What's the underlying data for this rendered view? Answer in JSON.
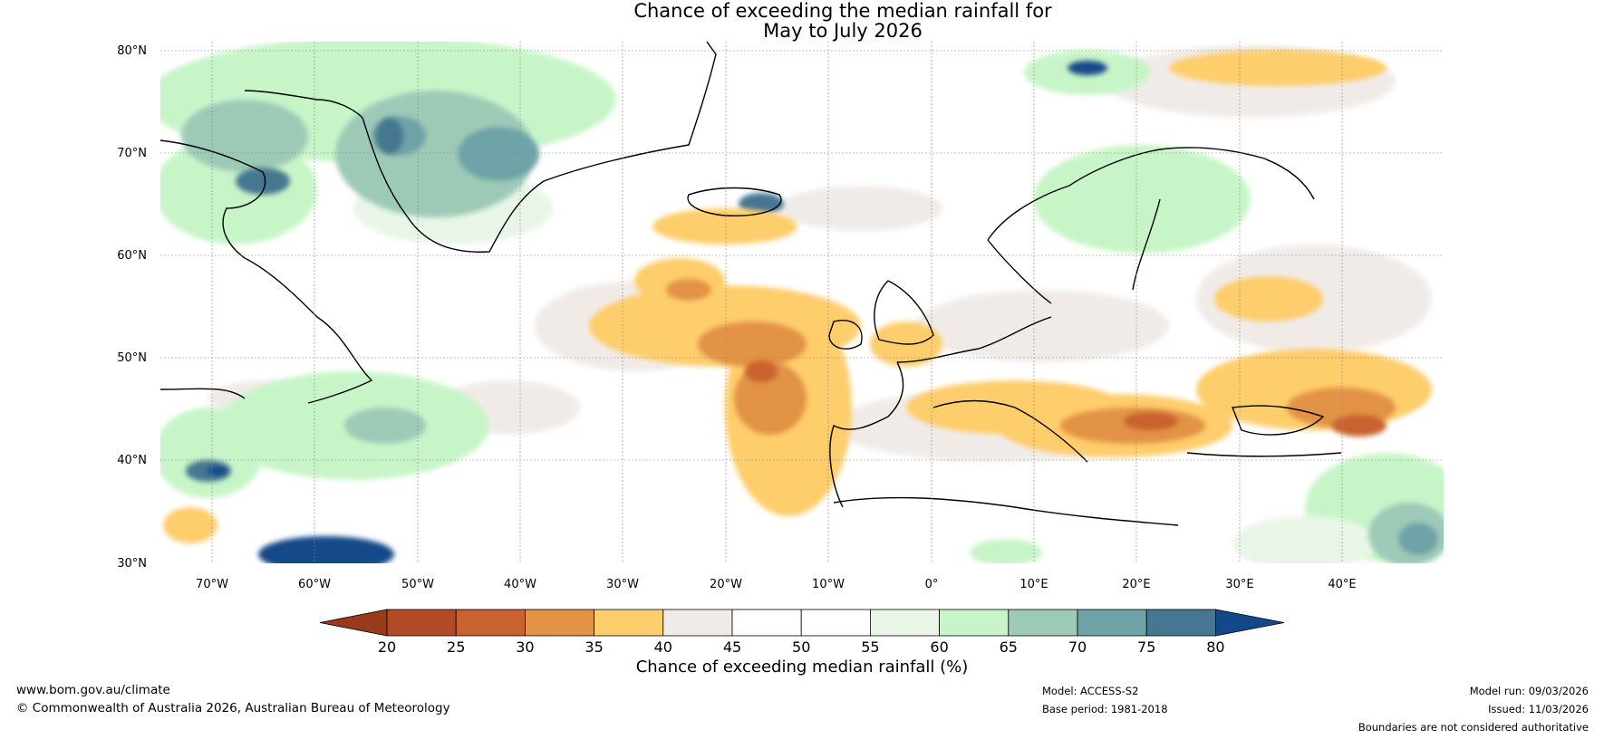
{
  "title": {
    "line1": "Chance of exceeding the median rainfall for",
    "line2": "May to July 2026"
  },
  "map": {
    "lat_labels": [
      "80°N",
      "70°N",
      "60°N",
      "50°N",
      "40°N",
      "30°N"
    ],
    "lon_labels": [
      "70°W",
      "60°W",
      "50°W",
      "40°W",
      "30°W",
      "20°W",
      "10°W",
      "0°",
      "10°E",
      "20°E",
      "30°E",
      "40°E"
    ]
  },
  "colorbar": {
    "ticks": [
      "20",
      "25",
      "30",
      "35",
      "40",
      "45",
      "50",
      "55",
      "60",
      "65",
      "70",
      "75",
      "80"
    ],
    "colors": [
      "#b24b25",
      "#c9622f",
      "#e29344",
      "#fecd6c",
      "#f1ebe8",
      "#ffffff",
      "#ffffff",
      "#e9f6e7",
      "#c8f5c8",
      "#9ccab7",
      "#6ea3a7",
      "#457890"
    ],
    "low_color": "#9a3a1c",
    "high_color": "#13498a",
    "label": "Chance of exceeding median rainfall (%)"
  },
  "footer": {
    "website": "www.bom.gov.au/climate",
    "copyright": "© Commonwealth of Australia 2026, Australian Bureau of Meteorology",
    "model": "Model: ACCESS-S2",
    "base_period": "Base period: 1981-2018",
    "model_run": "Model run: 09/03/2026",
    "issued": "Issued: 11/03/2026",
    "disclaimer": "Boundaries are not considered authoritative"
  }
}
